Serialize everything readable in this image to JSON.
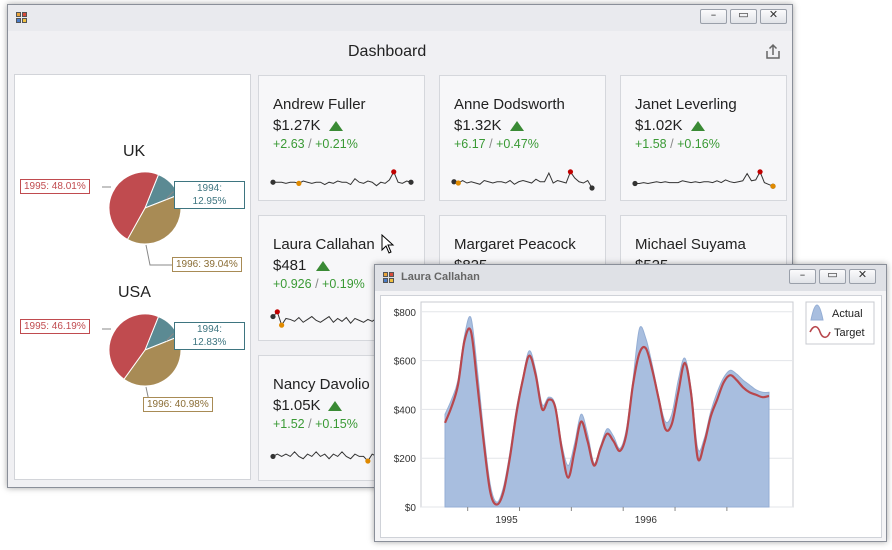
{
  "main_window": {
    "title": "Dashboard",
    "export_icon": "export-icon",
    "controls": {
      "minimize": "minimize-icon",
      "maximize": "maximize-icon",
      "close": "close-icon"
    }
  },
  "pies": [
    {
      "country": "UK",
      "labels": {
        "y1995": "1995: 48.01%",
        "y1994": [
          "1994:",
          "12.95%"
        ],
        "y1996": "1996: 39.04%"
      },
      "slices": [
        {
          "year": "1995",
          "pct": 48.01,
          "color": "#c04b4f"
        },
        {
          "year": "1994",
          "pct": 12.95,
          "color": "#5b8a93"
        },
        {
          "year": "1996",
          "pct": 39.04,
          "color": "#a88b55"
        }
      ]
    },
    {
      "country": "USA",
      "labels": {
        "y1995": "1995: 46.19%",
        "y1994": [
          "1994:",
          "12.83%"
        ],
        "y1996": "1996: 40.98%"
      },
      "slices": [
        {
          "year": "1995",
          "pct": 46.19,
          "color": "#c04b4f"
        },
        {
          "year": "1994",
          "pct": 12.83,
          "color": "#5b8a93"
        },
        {
          "year": "1996",
          "pct": 40.98,
          "color": "#a88b55"
        }
      ]
    }
  ],
  "cards": [
    {
      "name": "Andrew Fuller",
      "value": "$1.27K",
      "abs": "+2.63",
      "pct": "+0.21%"
    },
    {
      "name": "Anne Dodsworth",
      "value": "$1.32K",
      "abs": "+6.17",
      "pct": "+0.47%"
    },
    {
      "name": "Janet Leverling",
      "value": "$1.02K",
      "abs": "+1.58",
      "pct": "+0.16%"
    },
    {
      "name": "Laura Callahan",
      "value": "$481",
      "abs": "+0.926",
      "pct": "+0.19%"
    },
    {
      "name": "Margaret Peacock",
      "value": "$825",
      "abs": "",
      "pct": ""
    },
    {
      "name": "Michael Suyama",
      "value": "$525",
      "abs": "",
      "pct": ""
    },
    {
      "name": "Nancy Davolio",
      "value": "$1.05K",
      "abs": "+1.52",
      "pct": "+0.15%"
    }
  ],
  "popup": {
    "title": "Laura Callahan"
  },
  "colors": {
    "up": "#3a8a35",
    "area": "#a8bedf",
    "target": "#b8474d",
    "spark_max": "#c00000",
    "spark_min": "#e08a00"
  },
  "chart_data": {
    "type": "area",
    "series": [
      {
        "name": "Actual"
      },
      {
        "name": "Target"
      }
    ],
    "x_tick_labels": [
      "1995",
      "1996"
    ],
    "y_tick_labels": [
      "$0",
      "$200",
      "$400",
      "$600",
      "$800"
    ],
    "ylim": [
      0,
      840
    ],
    "grid": true,
    "legend_position": "top-right",
    "x": [
      0,
      1,
      2,
      3,
      4,
      5,
      6,
      7,
      8,
      9,
      10,
      11,
      12,
      13,
      14,
      15,
      16,
      17,
      18,
      19,
      20,
      21,
      22,
      23,
      24,
      25,
      26,
      27,
      28,
      29,
      30,
      31,
      32,
      33,
      34,
      35,
      36,
      37,
      38,
      39,
      40,
      41,
      42,
      43,
      44,
      45,
      46,
      47,
      48,
      49,
      50
    ],
    "actual": [
      380,
      440,
      520,
      700,
      775,
      560,
      300,
      90,
      20,
      80,
      220,
      400,
      530,
      640,
      560,
      420,
      450,
      420,
      260,
      170,
      260,
      380,
      300,
      180,
      250,
      320,
      290,
      240,
      320,
      520,
      730,
      690,
      580,
      450,
      350,
      380,
      520,
      610,
      480,
      240,
      280,
      390,
      470,
      530,
      560,
      545,
      520,
      500,
      480,
      470,
      470
    ],
    "target": [
      345,
      410,
      500,
      680,
      720,
      500,
      260,
      60,
      10,
      60,
      200,
      380,
      520,
      620,
      540,
      400,
      440,
      410,
      240,
      120,
      230,
      350,
      270,
      170,
      240,
      300,
      270,
      230,
      300,
      500,
      630,
      650,
      560,
      440,
      320,
      340,
      470,
      590,
      460,
      200,
      260,
      370,
      440,
      510,
      540,
      520,
      490,
      470,
      460,
      450,
      455
    ]
  }
}
